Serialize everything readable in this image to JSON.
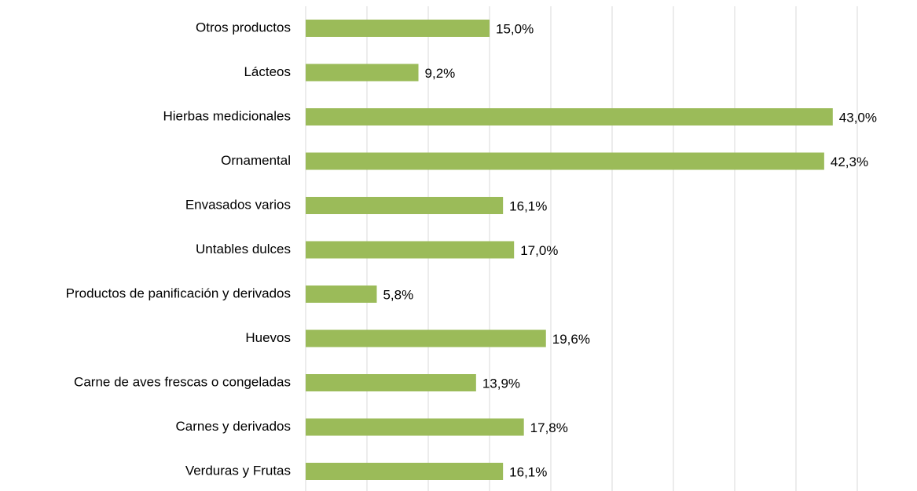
{
  "chart_data": {
    "type": "barh",
    "categories": [
      "Otros productos",
      "Lácteos",
      "Hierbas medicionales",
      "Ornamental",
      "Envasados varios",
      "Untables dulces",
      "Productos de panificación y derivados",
      "Huevos",
      "Carne de aves frescas o congeladas",
      "Carnes y derivados",
      "Verduras y Frutas"
    ],
    "values": [
      15.0,
      9.2,
      43.0,
      42.3,
      16.1,
      17.0,
      5.8,
      19.6,
      13.9,
      17.8,
      16.1
    ],
    "value_labels": [
      "15,0%",
      "9,2%",
      "43,0%",
      "42,3%",
      "16,1%",
      "17,0%",
      "5,8%",
      "19,6%",
      "13,9%",
      "17,8%",
      "16,1%"
    ],
    "color": "#9bbb59",
    "xlim": [
      0,
      45
    ],
    "xticks": [
      0,
      5,
      10,
      15,
      20,
      25,
      30,
      35,
      40,
      45
    ],
    "grid": true
  }
}
